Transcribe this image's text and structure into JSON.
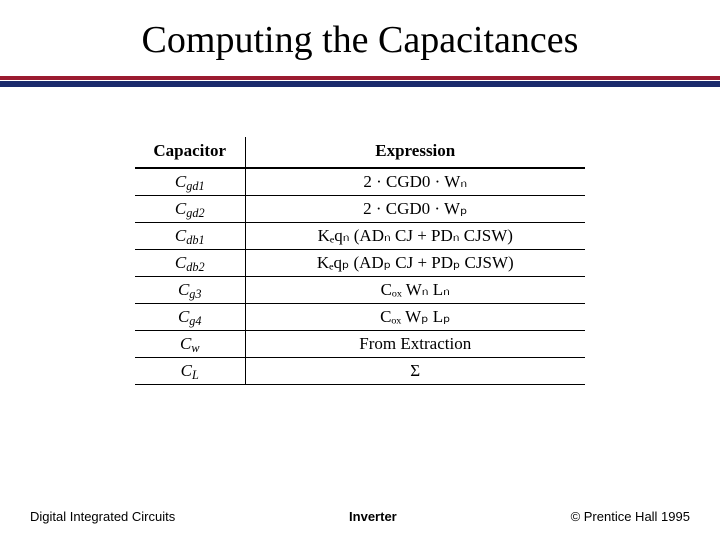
{
  "title": "Computing the Capacitances",
  "rule_colors": {
    "top": "#9b1b30",
    "bottom": "#1a2a6c"
  },
  "table": {
    "headers": [
      "Capacitor",
      "Expression"
    ],
    "rows": [
      {
        "cap_base": "C",
        "cap_sub": "gd1",
        "expr": "2 · CGD0 · Wₙ"
      },
      {
        "cap_base": "C",
        "cap_sub": "gd2",
        "expr": "2 · CGD0 · Wₚ"
      },
      {
        "cap_base": "C",
        "cap_sub": "db1",
        "expr": "Kₑqₙ (ADₙ CJ + PDₙ CJSW)"
      },
      {
        "cap_base": "C",
        "cap_sub": "db2",
        "expr": "Kₑqₚ (ADₚ CJ + PDₚ CJSW)"
      },
      {
        "cap_base": "C",
        "cap_sub": "g3",
        "expr": "Cₒₓ Wₙ Lₙ"
      },
      {
        "cap_base": "C",
        "cap_sub": "g4",
        "expr": "Cₒₓ Wₚ Lₚ"
      },
      {
        "cap_base": "C",
        "cap_sub": "w",
        "expr": "From Extraction"
      },
      {
        "cap_base": "C",
        "cap_sub": "L",
        "expr": "Σ"
      }
    ]
  },
  "footer": {
    "left": "Digital Integrated Circuits",
    "center": "Inverter",
    "right": "© Prentice Hall 1995"
  }
}
